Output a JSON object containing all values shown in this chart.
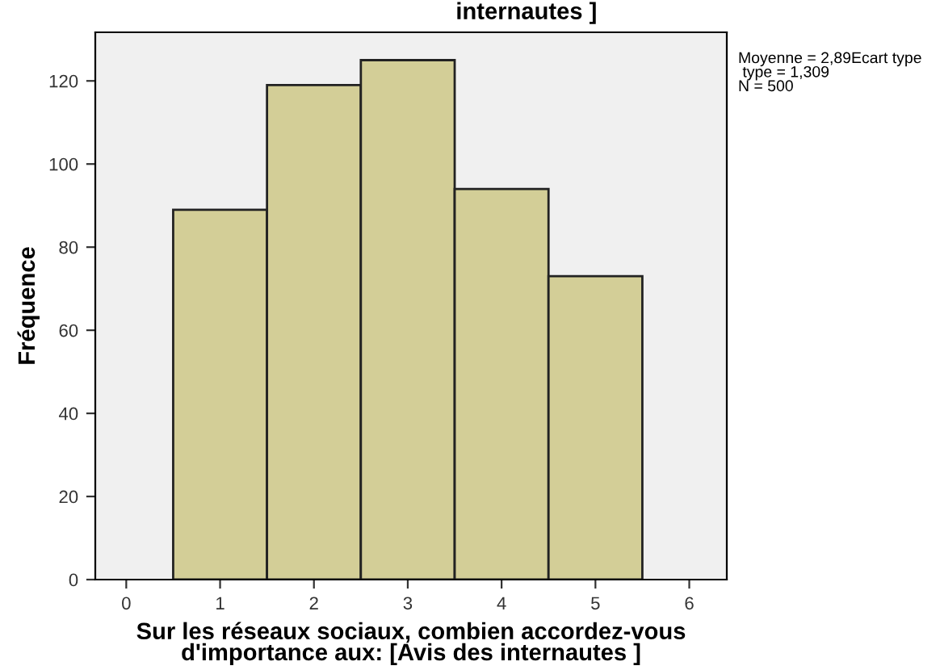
{
  "chart_data": {
    "type": "histogram",
    "title": "internautes ]",
    "xlabel": "Sur les réseaux sociaux, combien accordez-vous\nd'importance aux: [Avis des internautes ]",
    "ylabel": "Fréquence",
    "bins": [
      0.5,
      1.5,
      2.5,
      3.5,
      4.5,
      5.5
    ],
    "values": [
      89,
      119,
      125,
      94,
      73
    ],
    "color": "#d3ce97",
    "xlim": [
      -0.33,
      6.4
    ],
    "xticks": [
      0,
      1,
      2,
      3,
      4,
      5,
      6
    ],
    "ylim": [
      0,
      131.7
    ],
    "yticks": [
      0,
      20,
      40,
      60,
      80,
      100,
      120
    ],
    "grid": false,
    "annotations": [
      "Moyenne = 2,89Ecart type\n type = 1,309\nN = 500"
    ]
  }
}
